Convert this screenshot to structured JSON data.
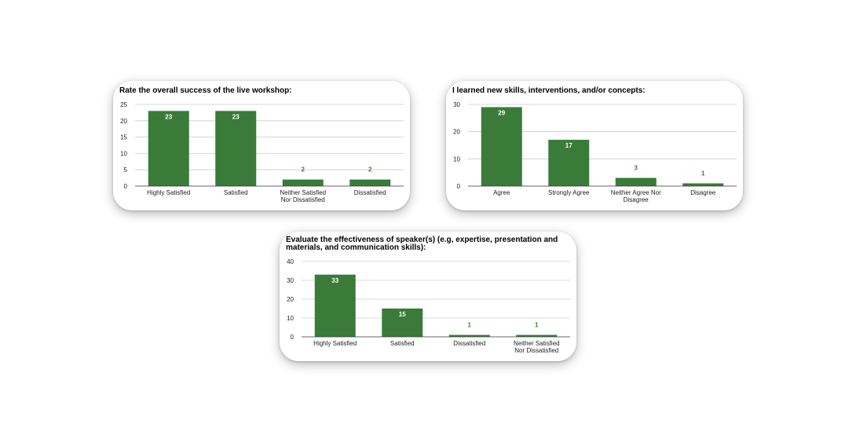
{
  "colors": {
    "bar": "#3a7b3a",
    "label_inside": "#ffffff",
    "label_outside": "#3a7b3a",
    "grid": "#cccccc",
    "axis": "#333333",
    "text": "#222222"
  },
  "chart_data": [
    {
      "type": "bar",
      "title": "Rate the overall success of the live workshop:",
      "categories": [
        "Highly Satisfied",
        "Satisfied",
        "Neither Satisfied\nNor Dissatisfied",
        "Dissatisfied"
      ],
      "values": [
        23,
        23,
        2,
        2
      ],
      "ylim": [
        0,
        25
      ],
      "yticks": [
        "0",
        "5",
        "10",
        "15",
        "20",
        "25"
      ],
      "grid": true,
      "xlabel": "",
      "ylabel": ""
    },
    {
      "type": "bar",
      "title": "I learned new skills, interventions, and/or concepts:",
      "categories": [
        "Agree",
        "Strongly Agree",
        "Neither Agree Nor\nDisagree",
        "Disagree"
      ],
      "values": [
        29,
        17,
        3,
        1
      ],
      "ylim": [
        0,
        30
      ],
      "yticks": [
        "0",
        "10",
        "20",
        "30"
      ],
      "grid": true,
      "xlabel": "",
      "ylabel": ""
    },
    {
      "type": "bar",
      "title": "Evaluate the effectiveness of speaker(s) (e.g, expertise, presentation and\nmaterials, and communication skills):",
      "categories": [
        "Highly Satisfied",
        "Satisfied",
        "Dissatisfied",
        "Neither Satisfied\nNor Dissatisfied"
      ],
      "values": [
        33,
        15,
        1,
        1
      ],
      "ylim": [
        0,
        40
      ],
      "yticks": [
        "0",
        "10",
        "20",
        "30",
        "40"
      ],
      "grid": true,
      "xlabel": "",
      "ylabel": ""
    }
  ]
}
